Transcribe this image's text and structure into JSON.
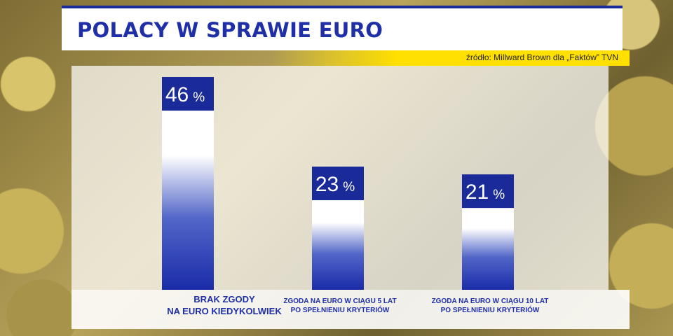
{
  "header": {
    "title": "POLACY W SPRAWIE EURO",
    "source": "źródło: Millward Brown dla „Faktów” TVN"
  },
  "colors": {
    "title": "#1f2fa8",
    "bar_dark": "#1a2ba8",
    "label_box": "#1a2a98",
    "source_highlight": "#ffe000"
  },
  "chart_data": {
    "type": "bar",
    "title": "POLACY W SPRAWIE EURO",
    "categories": [
      [
        "BRAK ZGODY",
        "NA EURO KIEDYKOLWIEK"
      ],
      [
        "ZGODA NA EURO W CIĄGU 5 LAT",
        "PO SPEŁNIENIU KRYTERIÓW"
      ],
      [
        "ZGODA NA EURO W CIĄGU 10 LAT",
        "PO SPEŁNIENIU KRYTERIÓW"
      ]
    ],
    "values": [
      46,
      23,
      21
    ],
    "value_labels": [
      "46",
      "23",
      "21"
    ],
    "unit": "%",
    "ylim": [
      0,
      50
    ],
    "grid": false,
    "legend": "none"
  }
}
